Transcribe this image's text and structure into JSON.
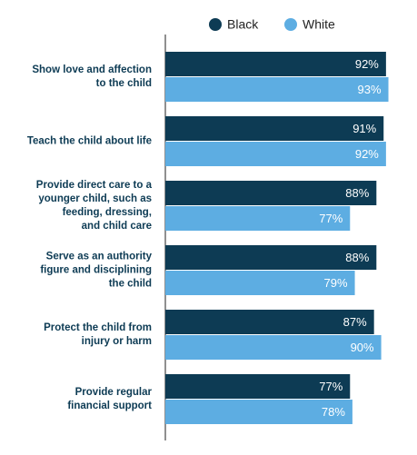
{
  "chart_data": {
    "type": "bar",
    "orientation": "horizontal",
    "categories": [
      [
        "Show love and affection",
        "to the child"
      ],
      [
        "Teach the child about life"
      ],
      [
        "Provide direct care to a",
        "younger child, such as",
        "feeding, dressing,",
        "and child care"
      ],
      [
        "Serve as an authority",
        "figure and disciplining",
        "the child"
      ],
      [
        "Protect the child from",
        "injury or harm"
      ],
      [
        "Provide regular",
        "financial support"
      ]
    ],
    "series": [
      {
        "name": "Black",
        "color": "#0d3b54",
        "values": [
          92,
          91,
          88,
          88,
          87,
          77
        ],
        "value_labels": [
          "92%",
          "91%",
          "88%",
          "88%",
          "87%",
          "77%"
        ]
      },
      {
        "name": "White",
        "color": "#5dade2",
        "values": [
          93,
          92,
          77,
          79,
          90,
          78
        ],
        "value_labels": [
          "93%",
          "92%",
          "77%",
          "79%",
          "90%",
          "78%"
        ]
      }
    ],
    "xlim": [
      0,
      100
    ]
  }
}
